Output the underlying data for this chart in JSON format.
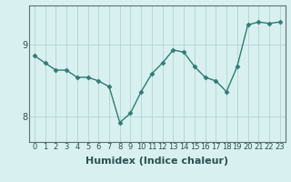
{
  "x": [
    0,
    1,
    2,
    3,
    4,
    5,
    6,
    7,
    8,
    9,
    10,
    11,
    12,
    13,
    14,
    15,
    16,
    17,
    18,
    19,
    20,
    21,
    22,
    23
  ],
  "y": [
    8.85,
    8.75,
    8.65,
    8.65,
    8.55,
    8.55,
    8.5,
    8.42,
    7.92,
    8.05,
    8.35,
    8.6,
    8.75,
    8.93,
    8.9,
    8.7,
    8.55,
    8.5,
    8.35,
    8.7,
    9.28,
    9.32,
    9.3,
    9.32
  ],
  "line_color": "#2e7d72",
  "marker": "D",
  "marker_size": 2.5,
  "bg_color": "#d8f0f0",
  "grid_color": "#b8d8d8",
  "xlabel": "Humidex (Indice chaleur)",
  "yticks": [
    8,
    9
  ],
  "ylim": [
    7.65,
    9.55
  ],
  "xlim": [
    -0.5,
    23.5
  ],
  "xlabel_fontsize": 8,
  "tick_fontsize": 7,
  "line_width": 1.0
}
